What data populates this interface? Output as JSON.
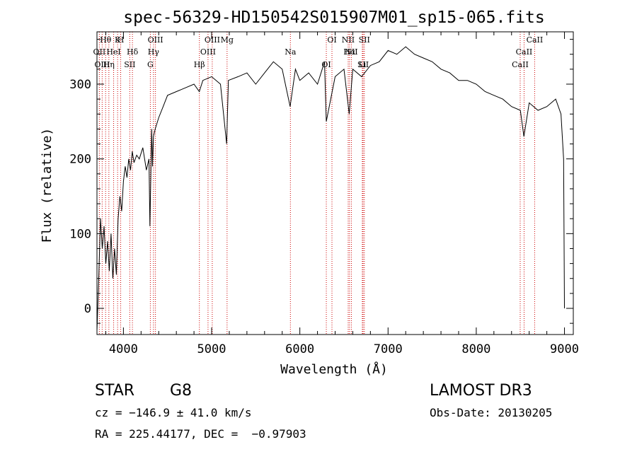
{
  "chart_data": {
    "type": "line",
    "title": "spec-56329-HD150542S015907M01_sp15-065.fits",
    "xlabel": "Wavelength (Å)",
    "ylabel": "Flux (relative)",
    "xlim": [
      3700,
      9100
    ],
    "ylim": [
      -35,
      370
    ],
    "xticks": [
      4000,
      5000,
      6000,
      7000,
      8000,
      9000
    ],
    "xtick_labels": [
      "4000",
      "5000",
      "6000",
      "7000",
      "8000",
      "9000"
    ],
    "yticks": [
      0,
      100,
      200,
      300
    ],
    "ytick_labels": [
      "0",
      "100",
      "200",
      "300"
    ],
    "grid": false,
    "series": [
      {
        "name": "flux",
        "x": [
          3700,
          3720,
          3740,
          3760,
          3780,
          3800,
          3820,
          3840,
          3860,
          3880,
          3900,
          3920,
          3940,
          3960,
          3980,
          4000,
          4020,
          4040,
          4060,
          4080,
          4100,
          4120,
          4150,
          4180,
          4220,
          4260,
          4290,
          4300,
          4320,
          4330,
          4340,
          4360,
          4400,
          4450,
          4500,
          4600,
          4700,
          4800,
          4860,
          4900,
          5000,
          5100,
          5170,
          5190,
          5300,
          5400,
          5500,
          5600,
          5700,
          5800,
          5890,
          5950,
          6000,
          6100,
          6200,
          6280,
          6300,
          6400,
          6500,
          6560,
          6600,
          6700,
          6800,
          6900,
          7000,
          7100,
          7200,
          7300,
          7400,
          7500,
          7600,
          7700,
          7800,
          7900,
          8000,
          8100,
          8200,
          8300,
          8400,
          8500,
          8540,
          8600,
          8700,
          8800,
          8900,
          8960,
          8990,
          9000
        ],
        "y": [
          -30,
          40,
          120,
          80,
          110,
          60,
          90,
          50,
          100,
          40,
          80,
          45,
          120,
          150,
          130,
          170,
          190,
          175,
          200,
          185,
          210,
          195,
          205,
          200,
          215,
          185,
          200,
          110,
          240,
          190,
          230,
          240,
          255,
          270,
          285,
          290,
          295,
          300,
          290,
          305,
          310,
          300,
          220,
          305,
          310,
          315,
          300,
          315,
          330,
          320,
          270,
          320,
          305,
          315,
          300,
          330,
          250,
          310,
          320,
          260,
          320,
          310,
          325,
          330,
          345,
          340,
          350,
          340,
          335,
          330,
          320,
          315,
          305,
          305,
          300,
          290,
          285,
          280,
          270,
          265,
          230,
          275,
          265,
          270,
          280,
          260,
          200,
          0
        ]
      }
    ],
    "line_markers": [
      {
        "label": "Hθ",
        "wavelength": 3798
      },
      {
        "label": "OII",
        "wavelength": 3727
      },
      {
        "label": "OIII",
        "wavelength": 3759
      },
      {
        "label": "K",
        "wavelength": 3934
      },
      {
        "label": "HeI",
        "wavelength": 3889
      },
      {
        "label": "Hη",
        "wavelength": 3835
      },
      {
        "label": "H",
        "wavelength": 3969
      },
      {
        "label": "Hδ",
        "wavelength": 4102
      },
      {
        "label": "SII",
        "wavelength": 4072
      },
      {
        "label": "OIII",
        "wavelength": 4363
      },
      {
        "label": "Hγ",
        "wavelength": 4341
      },
      {
        "label": "G",
        "wavelength": 4305
      },
      {
        "label": "OIII",
        "wavelength": 5007
      },
      {
        "label": "OIII",
        "wavelength": 4959
      },
      {
        "label": "Hβ",
        "wavelength": 4861
      },
      {
        "label": "Mg",
        "wavelength": 5175
      },
      {
        "label": "Na",
        "wavelength": 5893
      },
      {
        "label": "OI",
        "wavelength": 6300
      },
      {
        "label": "OI",
        "wavelength": 6364
      },
      {
        "label": "Hα",
        "wavelength": 6563
      },
      {
        "label": "SII",
        "wavelength": 6717
      },
      {
        "label": "NII",
        "wavelength": 6548
      },
      {
        "label": "NII",
        "wavelength": 6584
      },
      {
        "label": "Li",
        "wavelength": 6708
      },
      {
        "label": "SII",
        "wavelength": 6731
      },
      {
        "label": "CaII",
        "wavelength": 8542
      },
      {
        "label": "CaII",
        "wavelength": 8498
      },
      {
        "label": "CaII",
        "wavelength": 8662
      }
    ]
  },
  "info": {
    "class": "STAR",
    "subclass": "G8",
    "survey": "LAMOST DR3",
    "redshift_text": "cz = −146.9 ± 41.0 km/s",
    "obs_date_text": "Obs-Date: 20130205",
    "coords_text": "RA = 225.44177, DEC =  −0.97903"
  }
}
